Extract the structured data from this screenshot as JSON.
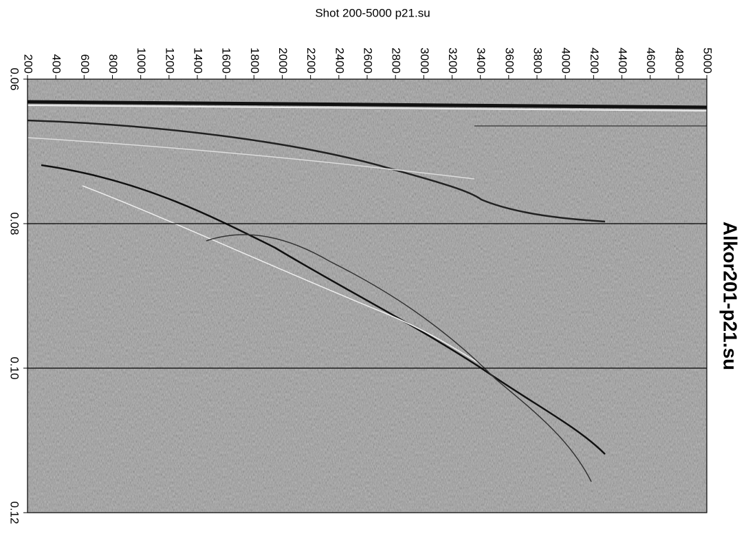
{
  "chart_data": {
    "type": "seismic",
    "title": "Shot 200-5000 p21.su",
    "side_label": "Alkor201-p21.su",
    "xlim": [
      200,
      5000
    ],
    "xticks": [
      200,
      400,
      600,
      800,
      1000,
      1200,
      1400,
      1600,
      1800,
      2000,
      2200,
      2400,
      2600,
      2800,
      3000,
      3200,
      3400,
      3600,
      3800,
      4000,
      4200,
      4400,
      4600,
      4800,
      5000
    ],
    "ylim": [
      0.06,
      0.12
    ],
    "yticks": [
      0.06,
      0.08,
      {
        "value": 0.1,
        "label": "0.10"
      },
      0.12
    ],
    "grid": true
  }
}
